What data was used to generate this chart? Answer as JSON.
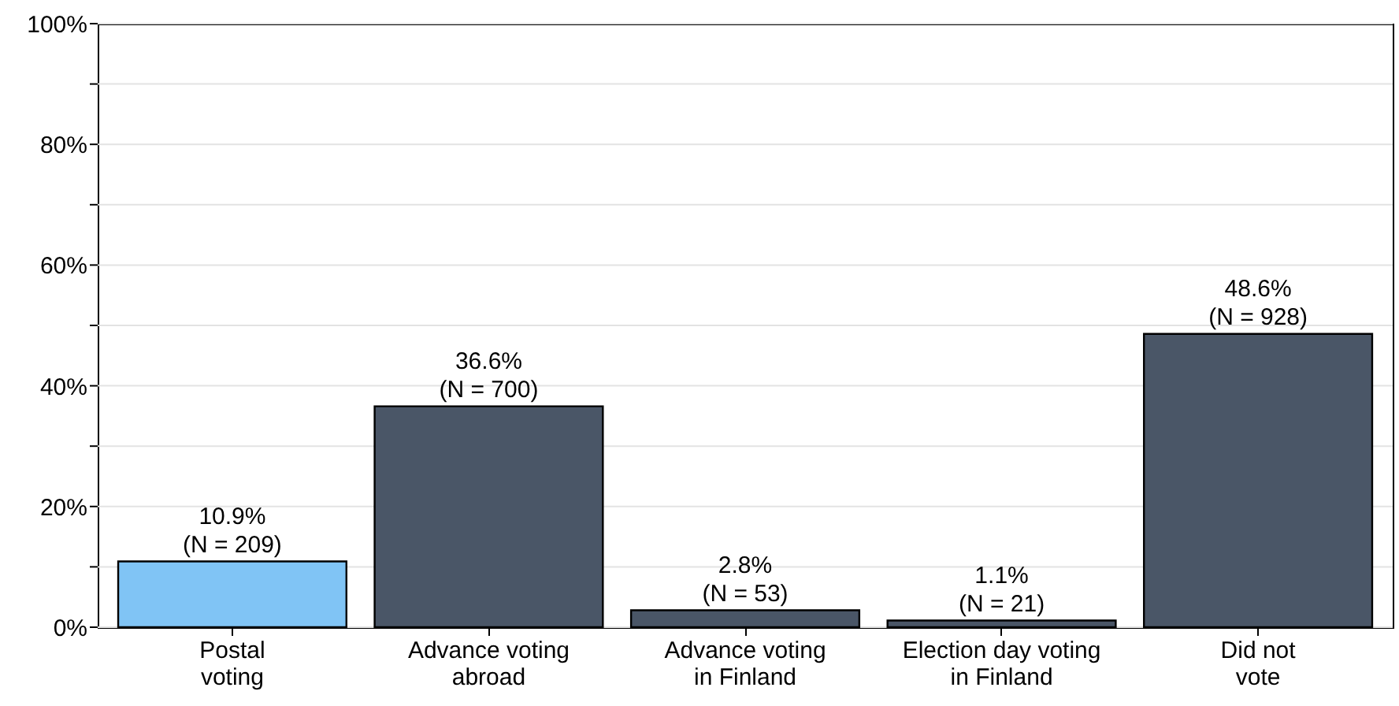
{
  "chart_data": {
    "type": "bar",
    "categories": [
      "Postal voting",
      "Advance voting abroad",
      "Advance voting in Finland",
      "Election day voting in Finland",
      "Did not vote"
    ],
    "values": [
      10.9,
      36.6,
      2.8,
      1.1,
      48.6
    ],
    "colors": [
      "#80c4f5",
      "#4a5667",
      "#4a5667",
      "#4a5667",
      "#4a5667"
    ],
    "value_labels": [
      "10.9% (N = 209)",
      "36.6% (N = 700)",
      "2.8% (N = 53)",
      "1.1% (N = 21)",
      "48.6% (N = 928)"
    ],
    "ylim": [
      0,
      100
    ],
    "yticks": [
      {
        "value": 0,
        "label": "0%"
      },
      {
        "value": 10,
        "label": null
      },
      {
        "value": 20,
        "label": "20%"
      },
      {
        "value": 30,
        "label": null
      },
      {
        "value": 40,
        "label": "40%"
      },
      {
        "value": 50,
        "label": null
      },
      {
        "value": 60,
        "label": "60%"
      },
      {
        "value": 70,
        "label": null
      },
      {
        "value": 80,
        "label": "80%"
      },
      {
        "value": 90,
        "label": null
      },
      {
        "value": 100,
        "label": "100%"
      }
    ],
    "grid": "y"
  }
}
